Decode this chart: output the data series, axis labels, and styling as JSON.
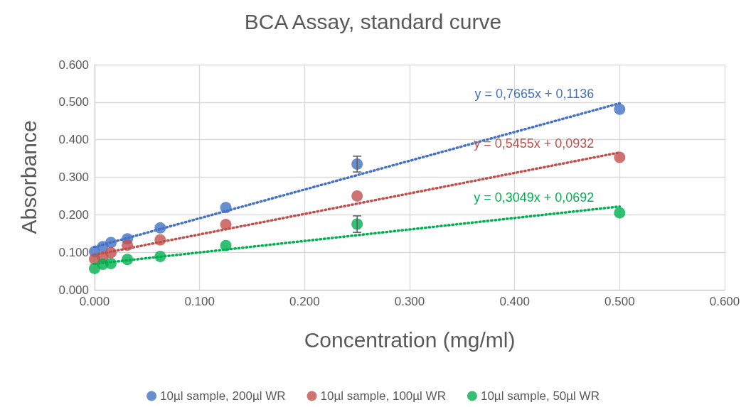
{
  "chart_data": {
    "type": "scatter",
    "title": "BCA Assay, standard curve",
    "xlabel": "Concentration (mg/ml)",
    "ylabel": "Absorbance",
    "xlim": [
      0,
      0.6
    ],
    "xticks": [
      {
        "value": 0,
        "label": "0.000"
      },
      {
        "value": 0.1,
        "label": "0.100"
      },
      {
        "value": 0.2,
        "label": "0.200"
      },
      {
        "value": 0.3,
        "label": "0.300"
      },
      {
        "value": 0.4,
        "label": "0.400"
      },
      {
        "value": 0.5,
        "label": "0.500"
      },
      {
        "value": 0.6,
        "label": "0.600"
      }
    ],
    "ylim": [
      0,
      0.6
    ],
    "yticks": [
      {
        "value": 0,
        "label": "0.000"
      },
      {
        "value": 0.1,
        "label": "0.100"
      },
      {
        "value": 0.2,
        "label": "0.200"
      },
      {
        "value": 0.3,
        "label": "0.300"
      },
      {
        "value": 0.4,
        "label": "0.400"
      },
      {
        "value": 0.5,
        "label": "0.500"
      },
      {
        "value": 0.6,
        "label": "0.600"
      }
    ],
    "grid": true,
    "legend": "bottom",
    "marker": "circle",
    "series": [
      {
        "name": "10µl sample, 200µl WR",
        "color": "#4472c4",
        "x": [
          0,
          0.0078,
          0.0156,
          0.03125,
          0.0625,
          0.125,
          0.25,
          0.5
        ],
        "values": [
          0.102,
          0.115,
          0.126,
          0.136,
          0.165,
          0.219,
          0.335,
          0.481
        ],
        "errors": [
          null,
          null,
          null,
          null,
          null,
          null,
          0.021,
          null
        ]
      },
      {
        "name": "10µl sample, 100µl WR",
        "color": "#c0504d",
        "x": [
          0,
          0.0078,
          0.0156,
          0.03125,
          0.0625,
          0.125,
          0.25,
          0.5
        ],
        "values": [
          0.082,
          0.087,
          0.099,
          0.119,
          0.133,
          0.174,
          0.25,
          0.353
        ]
      },
      {
        "name": "10µl sample, 50µl WR",
        "color": "#00b050",
        "x": [
          0,
          0.0078,
          0.0156,
          0.03125,
          0.0625,
          0.125,
          0.25,
          0.5
        ],
        "values": [
          0.057,
          0.068,
          0.07,
          0.081,
          0.089,
          0.118,
          0.175,
          0.205
        ],
        "errors": [
          null,
          null,
          null,
          null,
          null,
          null,
          0.022,
          null
        ]
      },
      {
        "type": "line",
        "color": "#4472c4",
        "line_style": "dotted",
        "marker": "none",
        "x": [
          0,
          0.5
        ],
        "values": [
          0.114,
          0.497
        ]
      },
      {
        "type": "line",
        "color": "#c0504d",
        "line_style": "dotted",
        "marker": "none",
        "x": [
          0,
          0.5
        ],
        "values": [
          0.093,
          0.366
        ]
      },
      {
        "type": "line",
        "color": "#00b050",
        "line_style": "dotted",
        "marker": "none",
        "x": [
          0,
          0.5
        ],
        "values": [
          0.069,
          0.222
        ]
      }
    ],
    "annotations": [
      "y = 0,7665x + 0,1136",
      "y = 0,5455x + 0,0932",
      "y = 0,3049x + 0,0692"
    ]
  }
}
